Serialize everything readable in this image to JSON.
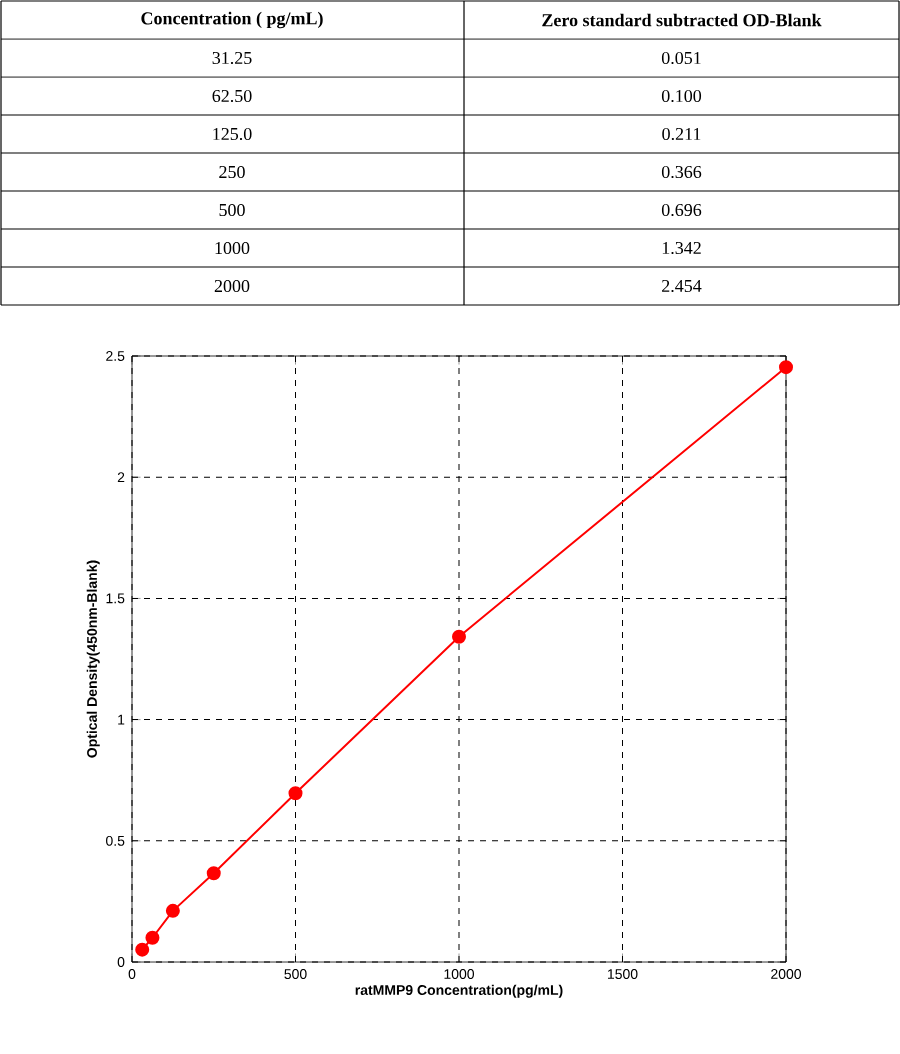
{
  "chart_data": {
    "type": "line",
    "xlabel": "ratMMP9  Concentration(pg/mL)",
    "ylabel": "Optical Density(450nm-Blank)",
    "x": [
      31.25,
      62.5,
      125,
      250,
      500,
      1000,
      2000
    ],
    "values": [
      0.051,
      0.1,
      0.211,
      0.366,
      0.696,
      1.342,
      2.454
    ],
    "color": "#ff0000",
    "marker": "circle",
    "line_style": "solid",
    "grid": true,
    "xlim": [
      0,
      2000
    ],
    "ylim": [
      0,
      2.5
    ],
    "xticks": [
      0,
      500,
      1000,
      1500,
      2000
    ],
    "yticks": [
      0,
      0.5,
      1,
      1.5,
      2,
      2.5
    ],
    "annotations": [
      "Concentration ( pg/mL)",
      "Zero standard subtracted OD-Blank",
      "31.25",
      "0.051",
      "62.50",
      "0.100",
      "125.0",
      "0.211",
      "250",
      "0.366",
      "500",
      "0.696",
      "1000",
      "1.342",
      "2000",
      "2.454"
    ]
  }
}
